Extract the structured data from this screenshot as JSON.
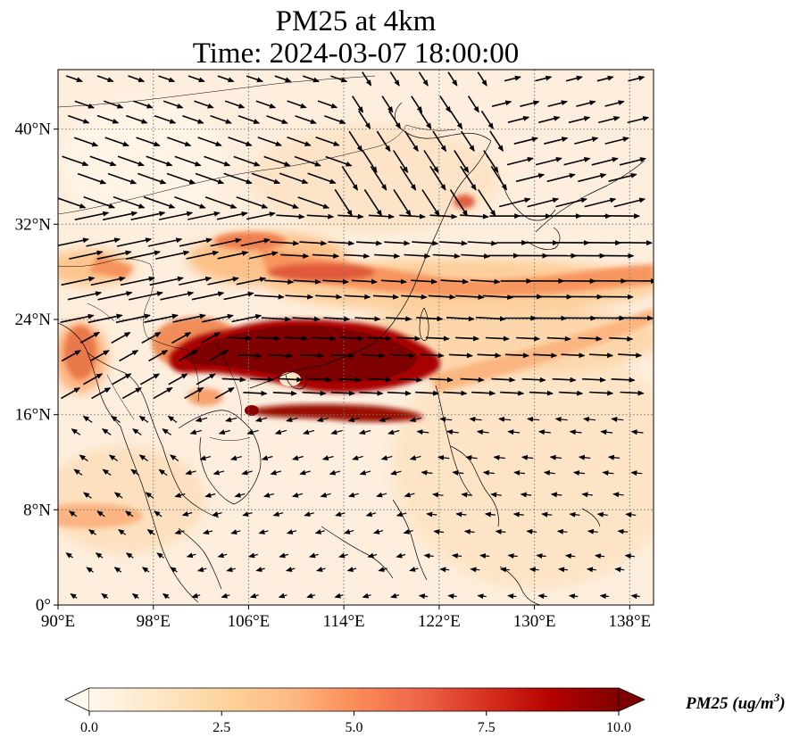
{
  "header": {
    "title_line1": "PM25 at 4km",
    "title_line2": "Time: 2024-03-07 18:00:00"
  },
  "map": {
    "lon_range": [
      90,
      140
    ],
    "lat_range": [
      0,
      45
    ],
    "lon_ticks": [
      "90°E",
      "98°E",
      "106°E",
      "114°E",
      "122°E",
      "130°E",
      "138°E"
    ],
    "lat_ticks": [
      "0°",
      "8°N",
      "16°N",
      "24°N",
      "32°N",
      "40°N"
    ],
    "lon_tick_values": [
      90,
      98,
      106,
      114,
      122,
      130,
      138
    ],
    "lat_tick_values": [
      0,
      8,
      16,
      24,
      32,
      40
    ],
    "gridlines": true,
    "variable": "PM25",
    "level": "4km"
  },
  "colorbar": {
    "label_text": "PM25 (ug/m",
    "label_exp": "3",
    "label_close": ")",
    "ticks": [
      "0.0",
      "2.5",
      "5.0",
      "7.5",
      "10.0"
    ],
    "tick_values": [
      0,
      2.5,
      5,
      7.5,
      10
    ],
    "range": [
      0,
      10
    ],
    "extend": "both",
    "colormap": "OrRd",
    "colors": [
      "#fff7ec",
      "#fee8c8",
      "#fdd49e",
      "#fdbb84",
      "#fc8d59",
      "#ef6548",
      "#d7301f",
      "#b30000",
      "#7f0000"
    ]
  }
}
